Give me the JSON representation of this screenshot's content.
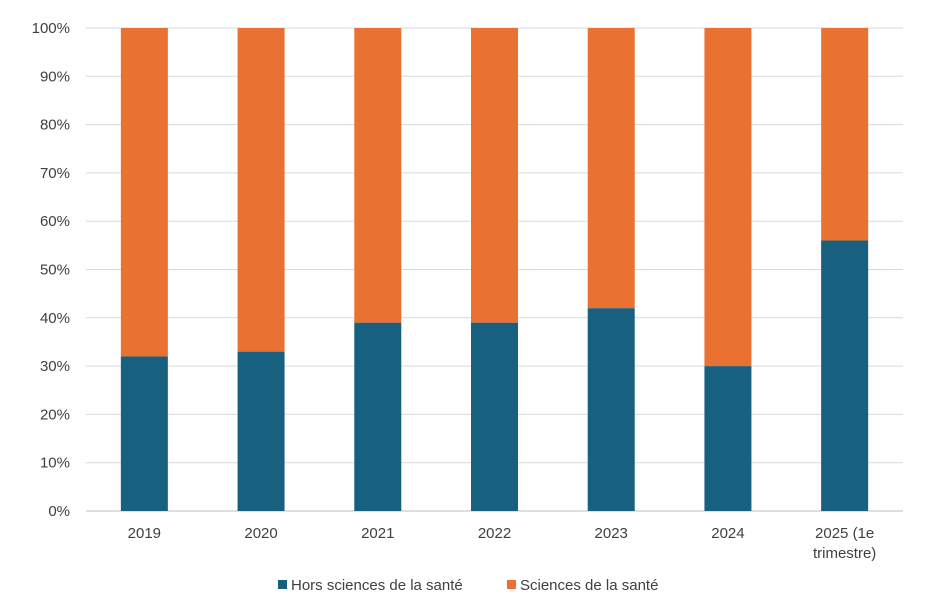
{
  "chart_data": {
    "type": "bar",
    "stacked": true,
    "categories": [
      "2019",
      "2020",
      "2021",
      "2022",
      "2023",
      "2024",
      "2025 (1e trimestre)"
    ],
    "category_lines": [
      [
        "2019"
      ],
      [
        "2020"
      ],
      [
        "2021"
      ],
      [
        "2022"
      ],
      [
        "2023"
      ],
      [
        "2024"
      ],
      [
        "2025 (1e",
        "trimestre)"
      ]
    ],
    "series": [
      {
        "name": "Hors sciences de la santé",
        "color": "#17607f",
        "values": [
          32,
          33,
          39,
          39,
          42,
          30,
          56
        ]
      },
      {
        "name": "Sciences de la santé",
        "color": "#e97232",
        "values": [
          68,
          67,
          61,
          61,
          58,
          70,
          44
        ]
      }
    ],
    "yticks": [
      "0%",
      "10%",
      "20%",
      "30%",
      "40%",
      "50%",
      "60%",
      "70%",
      "80%",
      "90%",
      "100%"
    ],
    "ylim": [
      0,
      100
    ],
    "grid": true,
    "legend_position": "bottom",
    "title": "",
    "xlabel": "",
    "ylabel": ""
  }
}
